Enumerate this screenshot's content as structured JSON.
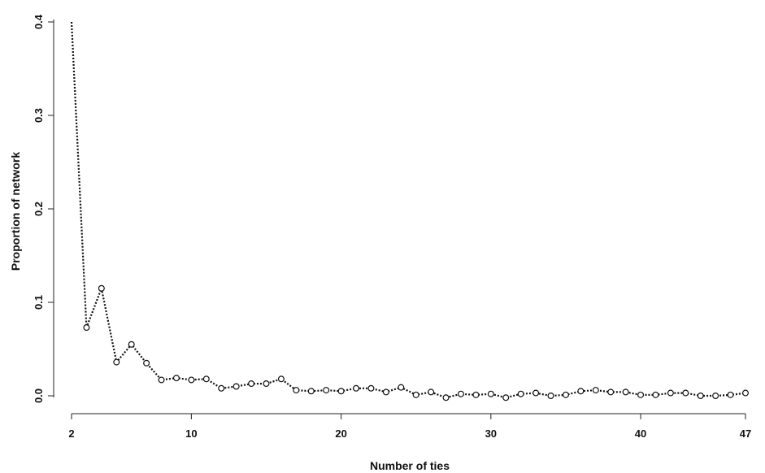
{
  "chart_data": {
    "type": "line",
    "title": "",
    "xlabel": "Number of ties",
    "ylabel": "Proportion of network",
    "xlim": [
      2,
      47
    ],
    "ylim": [
      0,
      0.4
    ],
    "x_ticks": [
      2,
      10,
      20,
      30,
      40,
      47
    ],
    "y_ticks": [
      "0.0",
      "0.1",
      "0.2",
      "0.3",
      "0.4"
    ],
    "grid": false,
    "line_style": "dotted",
    "marker": "open-circle",
    "colors": {
      "line": "#111111",
      "marker_fill": "#ffffff"
    },
    "series": [
      {
        "x": [
          2,
          3,
          4,
          5,
          6,
          7,
          8,
          9,
          10,
          11,
          12,
          13,
          14,
          15,
          16,
          17,
          18,
          19,
          20,
          21,
          22,
          23,
          24,
          25,
          26,
          27,
          28,
          29,
          30,
          31,
          32,
          33,
          34,
          35,
          36,
          37,
          38,
          39,
          40,
          41,
          42,
          43,
          44,
          45,
          46,
          47
        ],
        "values": [
          0.4,
          0.073,
          0.115,
          0.036,
          0.055,
          0.035,
          0.017,
          0.019,
          0.017,
          0.018,
          0.008,
          0.01,
          0.013,
          0.013,
          0.018,
          0.006,
          0.005,
          0.006,
          0.005,
          0.008,
          0.008,
          0.004,
          0.009,
          0.001,
          0.004,
          -0.002,
          0.002,
          0.001,
          0.002,
          -0.002,
          0.002,
          0.003,
          0.0,
          0.001,
          0.005,
          0.006,
          0.004,
          0.004,
          0.001,
          0.001,
          0.003,
          0.003,
          0.0,
          0.0,
          0.001,
          0.003
        ]
      }
    ]
  }
}
